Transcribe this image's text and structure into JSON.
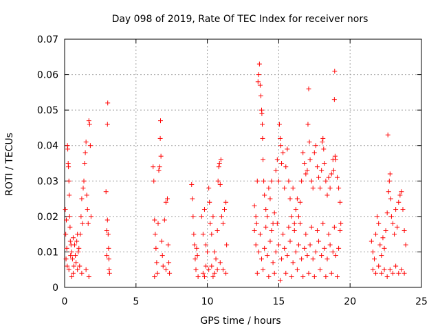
{
  "chart_data": {
    "type": "scatter",
    "title": "Day 098 of 2019, Rate Of TEC Index for receiver nors",
    "xlabel": "GPS time / hours",
    "ylabel": "ROTI / TECUs",
    "xlim": [
      0,
      25
    ],
    "ylim": [
      0,
      0.07
    ],
    "xticks": [
      0,
      5,
      10,
      15,
      20,
      25
    ],
    "yticks": [
      0,
      0.01,
      0.02,
      0.03,
      0.04,
      0.05,
      0.06,
      0.07
    ],
    "xtick_labels": [
      "0",
      "5",
      "10",
      "15",
      "20",
      "25"
    ],
    "ytick_labels": [
      "0",
      "0.01",
      "0.02",
      "0.03",
      "0.04",
      "0.05",
      "0.06",
      "0.07"
    ],
    "grid": true,
    "marker": "+",
    "color": "#ff0000",
    "series": [
      {
        "name": "ROTI",
        "points": [
          [
            0.05,
            0.022
          ],
          [
            0.08,
            0.015
          ],
          [
            0.1,
            0.008
          ],
          [
            0.12,
            0.019
          ],
          [
            0.15,
            0.011
          ],
          [
            0.18,
            0.006
          ],
          [
            0.2,
            0.04
          ],
          [
            0.22,
            0.039
          ],
          [
            0.25,
            0.035
          ],
          [
            0.27,
            0.034
          ],
          [
            0.3,
            0.03
          ],
          [
            0.32,
            0.026
          ],
          [
            0.35,
            0.02
          ],
          [
            0.38,
            0.017
          ],
          [
            0.4,
            0.013
          ],
          [
            0.42,
            0.009
          ],
          [
            0.45,
            0.012
          ],
          [
            0.5,
            0.01
          ],
          [
            0.55,
            0.008
          ],
          [
            0.6,
            0.014
          ],
          [
            0.65,
            0.006
          ],
          [
            0.7,
            0.012
          ],
          [
            0.75,
            0.009
          ],
          [
            0.8,
            0.007
          ],
          [
            0.85,
            0.013
          ],
          [
            0.9,
            0.015
          ],
          [
            0.95,
            0.01
          ],
          [
            1.0,
            0.011
          ],
          [
            1.05,
            0.006
          ],
          [
            1.1,
            0.015
          ],
          [
            1.15,
            0.02
          ],
          [
            1.2,
            0.025
          ],
          [
            1.25,
            0.018
          ],
          [
            1.3,
            0.028
          ],
          [
            1.35,
            0.03
          ],
          [
            1.4,
            0.035
          ],
          [
            1.45,
            0.038
          ],
          [
            1.5,
            0.041
          ],
          [
            1.55,
            0.026
          ],
          [
            1.6,
            0.022
          ],
          [
            1.65,
            0.018
          ],
          [
            1.7,
            0.047
          ],
          [
            1.75,
            0.046
          ],
          [
            1.8,
            0.04
          ],
          [
            1.85,
            0.02
          ],
          [
            0.3,
            0.005
          ],
          [
            0.6,
            0.004
          ],
          [
            0.9,
            0.005
          ],
          [
            1.2,
            0.004
          ],
          [
            1.5,
            0.005
          ],
          [
            1.7,
            0.003
          ],
          [
            0.5,
            0.003
          ],
          [
            2.9,
            0.027
          ],
          [
            2.95,
            0.016
          ],
          [
            3.0,
            0.046
          ],
          [
            3.02,
            0.052
          ],
          [
            3.05,
            0.015
          ],
          [
            3.08,
            0.011
          ],
          [
            3.1,
            0.008
          ],
          [
            3.12,
            0.005
          ],
          [
            3.15,
            0.004
          ],
          [
            2.95,
            0.009
          ],
          [
            3.0,
            0.019
          ],
          [
            6.2,
            0.034
          ],
          [
            6.25,
            0.03
          ],
          [
            6.3,
            0.019
          ],
          [
            6.35,
            0.015
          ],
          [
            6.4,
            0.011
          ],
          [
            6.45,
            0.007
          ],
          [
            6.5,
            0.004
          ],
          [
            6.55,
            0.018
          ],
          [
            6.6,
            0.033
          ],
          [
            6.65,
            0.034
          ],
          [
            6.7,
            0.042
          ],
          [
            6.72,
            0.047
          ],
          [
            6.75,
            0.037
          ],
          [
            6.8,
            0.013
          ],
          [
            6.85,
            0.009
          ],
          [
            6.9,
            0.006
          ],
          [
            7.0,
            0.019
          ],
          [
            7.1,
            0.024
          ],
          [
            7.2,
            0.025
          ],
          [
            7.25,
            0.012
          ],
          [
            7.3,
            0.007
          ],
          [
            7.35,
            0.004
          ],
          [
            6.3,
            0.003
          ],
          [
            7.1,
            0.005
          ],
          [
            8.9,
            0.029
          ],
          [
            8.95,
            0.025
          ],
          [
            9.0,
            0.02
          ],
          [
            9.05,
            0.015
          ],
          [
            9.1,
            0.012
          ],
          [
            9.15,
            0.008
          ],
          [
            9.2,
            0.005
          ],
          [
            9.25,
            0.011
          ],
          [
            9.3,
            0.009
          ],
          [
            9.35,
            0.003
          ],
          [
            9.6,
            0.02
          ],
          [
            9.7,
            0.015
          ],
          [
            9.8,
            0.022
          ],
          [
            9.9,
            0.012
          ],
          [
            10.0,
            0.01
          ],
          [
            10.1,
            0.028
          ],
          [
            10.15,
            0.024
          ],
          [
            10.2,
            0.018
          ],
          [
            10.3,
            0.015
          ],
          [
            10.4,
            0.02
          ],
          [
            10.5,
            0.01
          ],
          [
            10.6,
            0.008
          ],
          [
            10.7,
            0.016
          ],
          [
            10.75,
            0.03
          ],
          [
            10.8,
            0.034
          ],
          [
            10.85,
            0.035
          ],
          [
            10.9,
            0.029
          ],
          [
            10.95,
            0.036
          ],
          [
            11.0,
            0.02
          ],
          [
            11.1,
            0.018
          ],
          [
            11.2,
            0.022
          ],
          [
            11.3,
            0.024
          ],
          [
            11.35,
            0.012
          ],
          [
            9.7,
            0.004
          ],
          [
            9.9,
            0.006
          ],
          [
            10.1,
            0.005
          ],
          [
            10.3,
            0.006
          ],
          [
            10.5,
            0.004
          ],
          [
            10.7,
            0.005
          ],
          [
            10.9,
            0.007
          ],
          [
            11.1,
            0.005
          ],
          [
            11.3,
            0.004
          ],
          [
            9.8,
            0.003
          ],
          [
            10.4,
            0.003
          ],
          [
            13.3,
            0.023
          ],
          [
            13.4,
            0.02
          ],
          [
            13.45,
            0.018
          ],
          [
            13.5,
            0.03
          ],
          [
            13.55,
            0.058
          ],
          [
            13.6,
            0.06
          ],
          [
            13.65,
            0.063
          ],
          [
            13.7,
            0.057
          ],
          [
            13.75,
            0.054
          ],
          [
            13.8,
            0.05
          ],
          [
            13.82,
            0.049
          ],
          [
            13.85,
            0.046
          ],
          [
            13.87,
            0.042
          ],
          [
            13.9,
            0.036
          ],
          [
            13.95,
            0.03
          ],
          [
            14.0,
            0.026
          ],
          [
            14.1,
            0.022
          ],
          [
            14.2,
            0.02
          ],
          [
            14.3,
            0.028
          ],
          [
            14.4,
            0.025
          ],
          [
            14.5,
            0.03
          ],
          [
            14.6,
            0.018
          ],
          [
            14.7,
            0.021
          ],
          [
            14.8,
            0.033
          ],
          [
            14.9,
            0.036
          ],
          [
            15.0,
            0.03
          ],
          [
            15.05,
            0.046
          ],
          [
            15.1,
            0.042
          ],
          [
            15.15,
            0.04
          ],
          [
            15.2,
            0.035
          ],
          [
            15.3,
            0.038
          ],
          [
            15.4,
            0.028
          ],
          [
            15.5,
            0.034
          ],
          [
            15.6,
            0.039
          ],
          [
            15.7,
            0.03
          ],
          [
            15.8,
            0.025
          ],
          [
            15.9,
            0.02
          ],
          [
            16.0,
            0.028
          ],
          [
            16.1,
            0.018
          ],
          [
            16.2,
            0.022
          ],
          [
            16.3,
            0.025
          ],
          [
            16.4,
            0.02
          ],
          [
            16.5,
            0.024
          ],
          [
            16.6,
            0.03
          ],
          [
            16.7,
            0.038
          ],
          [
            16.8,
            0.035
          ],
          [
            16.9,
            0.032
          ],
          [
            17.0,
            0.033
          ],
          [
            17.05,
            0.046
          ],
          [
            17.1,
            0.056
          ],
          [
            17.15,
            0.041
          ],
          [
            17.2,
            0.036
          ],
          [
            17.3,
            0.03
          ],
          [
            17.4,
            0.028
          ],
          [
            17.5,
            0.038
          ],
          [
            17.6,
            0.04
          ],
          [
            17.7,
            0.034
          ],
          [
            17.8,
            0.031
          ],
          [
            17.9,
            0.028
          ],
          [
            18.0,
            0.033
          ],
          [
            18.05,
            0.041
          ],
          [
            18.1,
            0.042
          ],
          [
            18.15,
            0.039
          ],
          [
            18.2,
            0.035
          ],
          [
            18.3,
            0.03
          ],
          [
            18.4,
            0.026
          ],
          [
            18.5,
            0.031
          ],
          [
            18.6,
            0.028
          ],
          [
            18.7,
            0.032
          ],
          [
            18.8,
            0.036
          ],
          [
            18.85,
            0.033
          ],
          [
            18.9,
            0.053
          ],
          [
            18.92,
            0.061
          ],
          [
            18.95,
            0.037
          ],
          [
            19.0,
            0.036
          ],
          [
            19.1,
            0.031
          ],
          [
            19.2,
            0.028
          ],
          [
            19.3,
            0.024
          ],
          [
            19.35,
            0.018
          ],
          [
            13.4,
            0.012
          ],
          [
            13.6,
            0.01
          ],
          [
            13.8,
            0.008
          ],
          [
            14.0,
            0.011
          ],
          [
            14.2,
            0.009
          ],
          [
            14.4,
            0.013
          ],
          [
            14.6,
            0.007
          ],
          [
            14.8,
            0.01
          ],
          [
            15.0,
            0.012
          ],
          [
            15.2,
            0.008
          ],
          [
            15.4,
            0.011
          ],
          [
            15.6,
            0.009
          ],
          [
            15.8,
            0.013
          ],
          [
            16.0,
            0.007
          ],
          [
            16.2,
            0.01
          ],
          [
            16.4,
            0.012
          ],
          [
            16.6,
            0.008
          ],
          [
            16.8,
            0.011
          ],
          [
            17.0,
            0.009
          ],
          [
            17.2,
            0.012
          ],
          [
            17.4,
            0.008
          ],
          [
            17.6,
            0.01
          ],
          [
            17.8,
            0.013
          ],
          [
            18.0,
            0.009
          ],
          [
            18.2,
            0.011
          ],
          [
            18.4,
            0.008
          ],
          [
            18.6,
            0.012
          ],
          [
            18.8,
            0.01
          ],
          [
            19.0,
            0.009
          ],
          [
            19.2,
            0.011
          ],
          [
            13.5,
            0.004
          ],
          [
            13.9,
            0.005
          ],
          [
            14.3,
            0.003
          ],
          [
            14.7,
            0.004
          ],
          [
            15.1,
            0.002
          ],
          [
            15.5,
            0.004
          ],
          [
            15.9,
            0.003
          ],
          [
            16.3,
            0.005
          ],
          [
            16.7,
            0.003
          ],
          [
            17.1,
            0.004
          ],
          [
            17.5,
            0.003
          ],
          [
            17.9,
            0.005
          ],
          [
            18.3,
            0.003
          ],
          [
            18.7,
            0.004
          ],
          [
            19.1,
            0.003
          ],
          [
            13.3,
            0.016
          ],
          [
            13.7,
            0.015
          ],
          [
            14.1,
            0.017
          ],
          [
            14.5,
            0.016
          ],
          [
            14.9,
            0.018
          ],
          [
            15.3,
            0.015
          ],
          [
            15.7,
            0.017
          ],
          [
            16.1,
            0.016
          ],
          [
            16.5,
            0.018
          ],
          [
            16.9,
            0.015
          ],
          [
            17.3,
            0.017
          ],
          [
            17.7,
            0.016
          ],
          [
            18.1,
            0.018
          ],
          [
            18.5,
            0.015
          ],
          [
            18.9,
            0.017
          ],
          [
            19.3,
            0.016
          ],
          [
            21.5,
            0.013
          ],
          [
            21.6,
            0.01
          ],
          [
            21.7,
            0.008
          ],
          [
            21.8,
            0.015
          ],
          [
            21.9,
            0.02
          ],
          [
            22.0,
            0.018
          ],
          [
            22.1,
            0.012
          ],
          [
            22.2,
            0.009
          ],
          [
            22.3,
            0.014
          ],
          [
            22.4,
            0.011
          ],
          [
            22.5,
            0.016
          ],
          [
            22.6,
            0.021
          ],
          [
            22.65,
            0.043
          ],
          [
            22.7,
            0.027
          ],
          [
            22.75,
            0.03
          ],
          [
            22.8,
            0.032
          ],
          [
            22.85,
            0.025
          ],
          [
            22.9,
            0.02
          ],
          [
            23.0,
            0.018
          ],
          [
            23.1,
            0.015
          ],
          [
            23.2,
            0.022
          ],
          [
            23.3,
            0.017
          ],
          [
            23.4,
            0.024
          ],
          [
            23.5,
            0.026
          ],
          [
            23.6,
            0.027
          ],
          [
            23.7,
            0.022
          ],
          [
            23.8,
            0.016
          ],
          [
            23.9,
            0.012
          ],
          [
            21.6,
            0.005
          ],
          [
            21.8,
            0.004
          ],
          [
            22.0,
            0.006
          ],
          [
            22.2,
            0.004
          ],
          [
            22.4,
            0.005
          ],
          [
            22.6,
            0.003
          ],
          [
            22.8,
            0.005
          ],
          [
            23.0,
            0.004
          ],
          [
            23.2,
            0.006
          ],
          [
            23.4,
            0.004
          ],
          [
            23.6,
            0.005
          ],
          [
            23.8,
            0.004
          ]
        ]
      }
    ]
  }
}
